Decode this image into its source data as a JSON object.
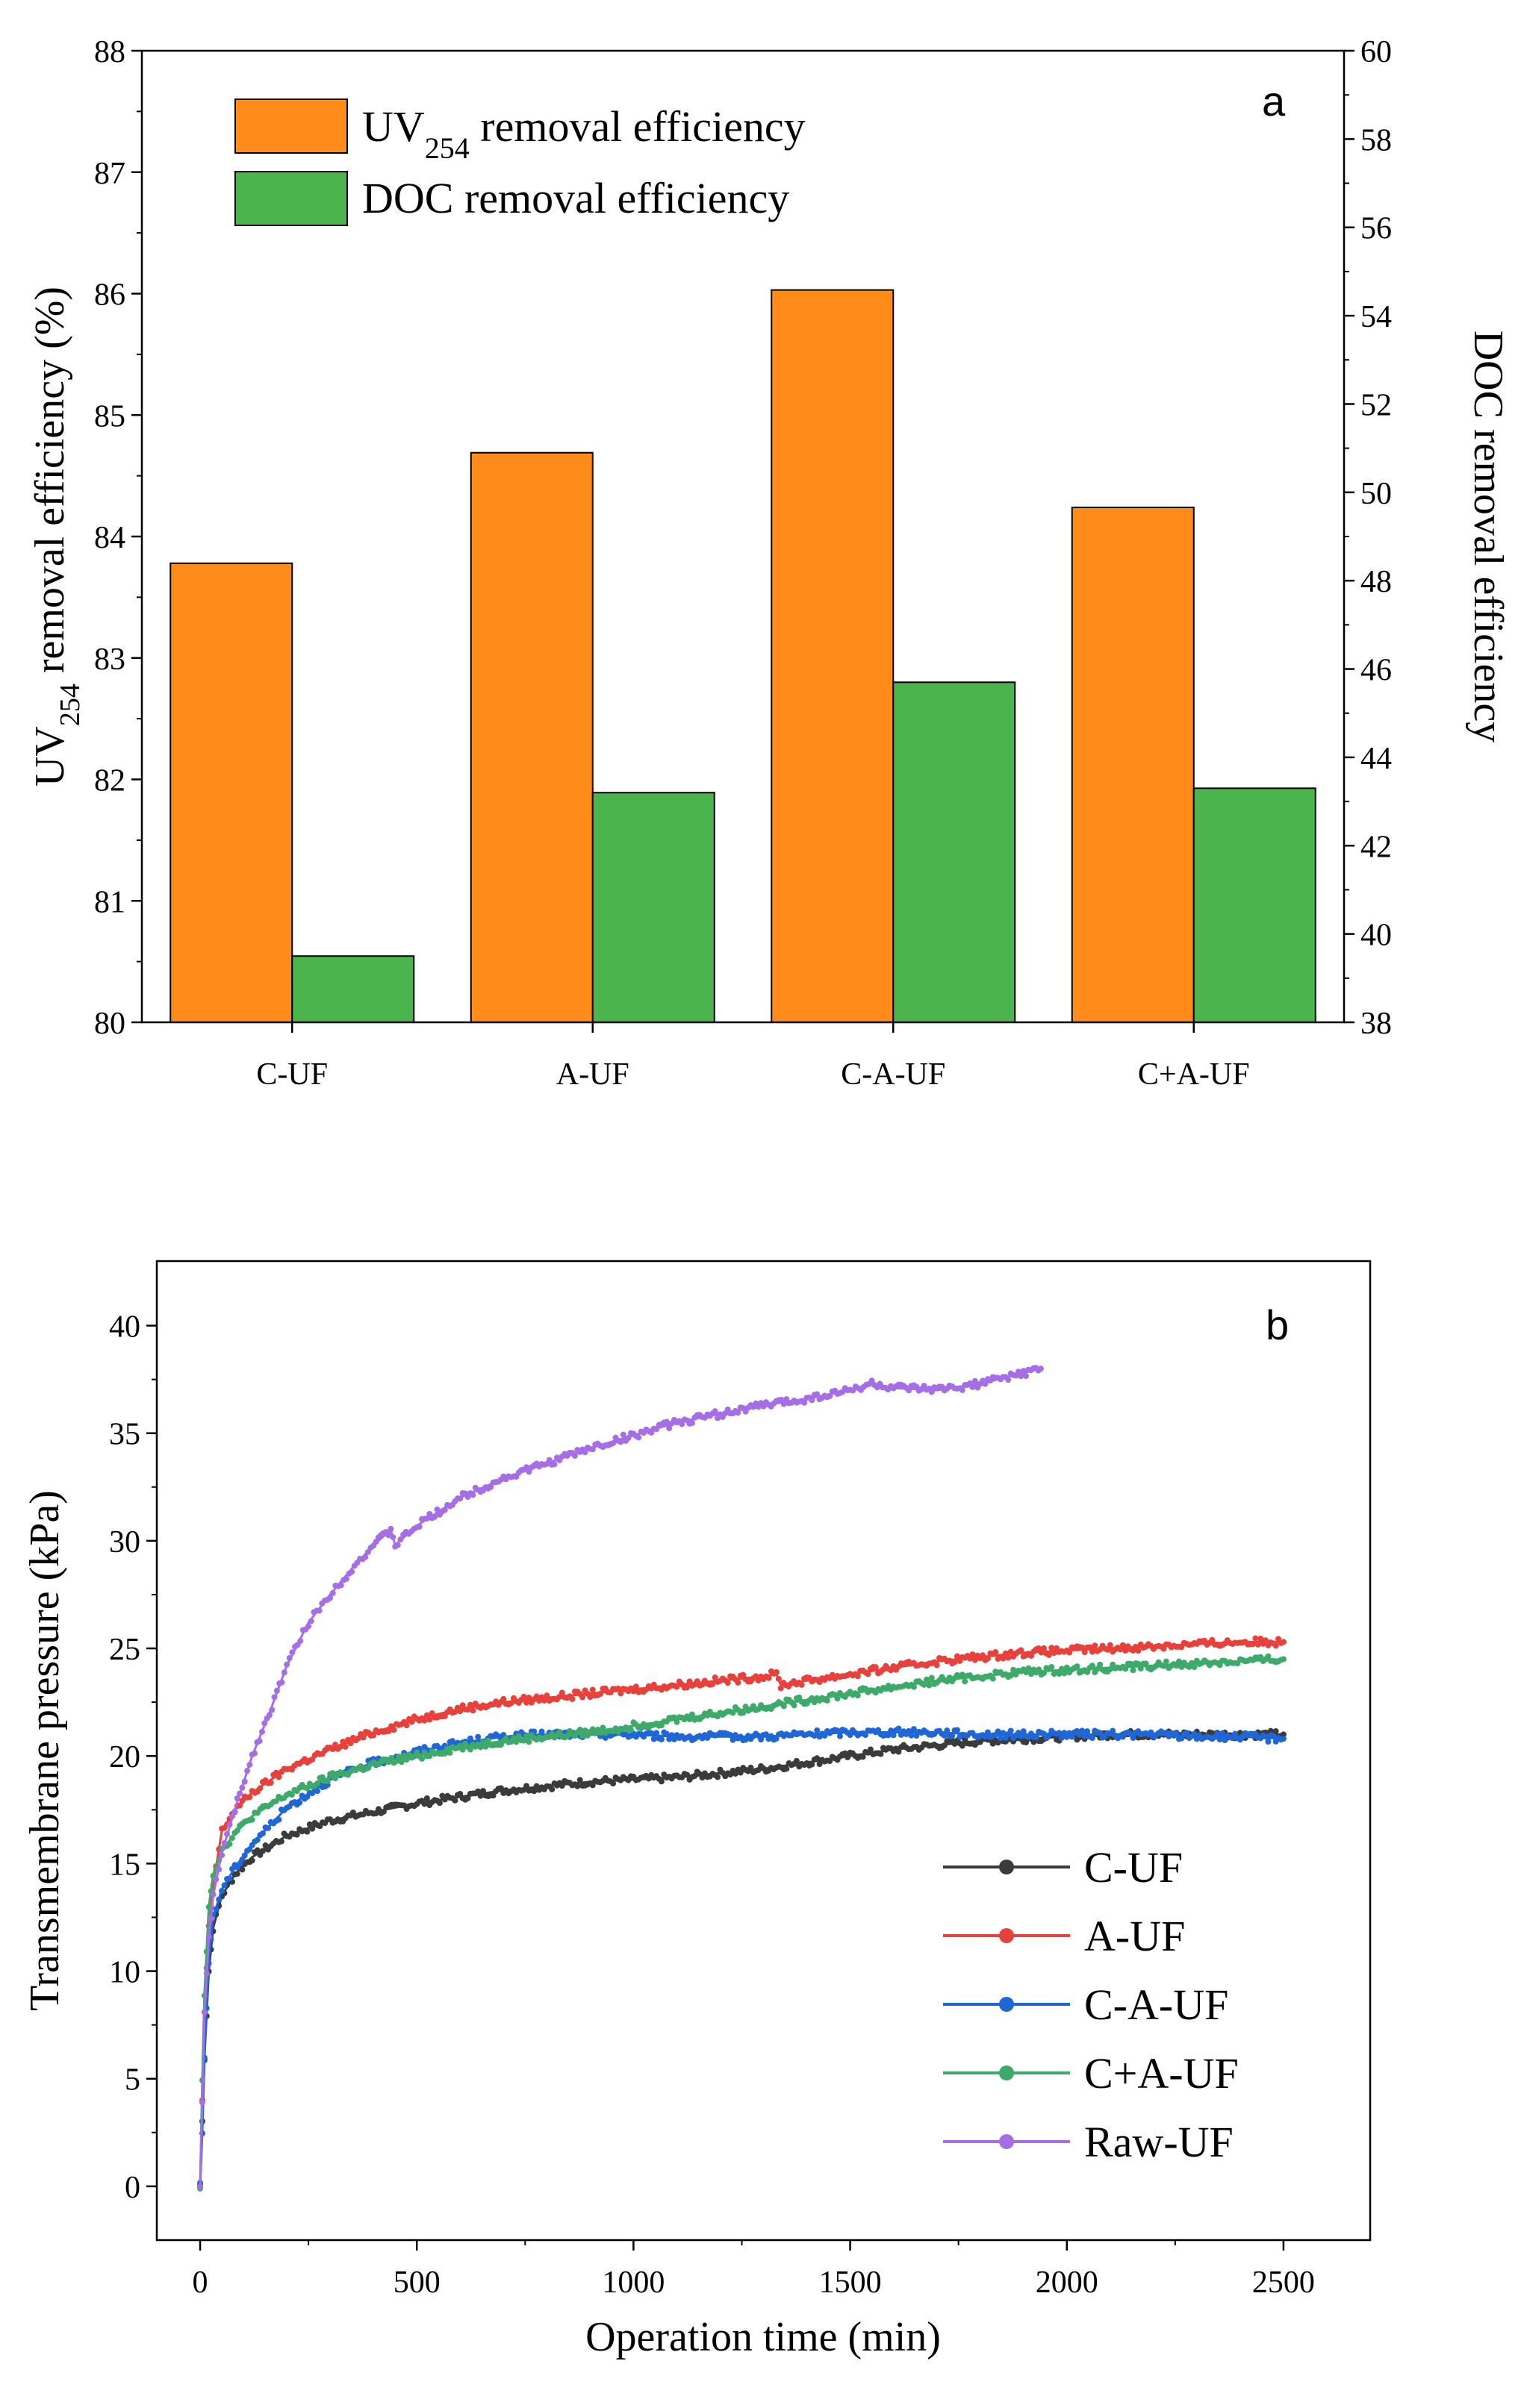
{
  "chart_data": [
    {
      "type": "bar",
      "panel_label": "a",
      "categories": [
        "C-UF",
        "A-UF",
        "C-A-UF",
        "C+A-UF"
      ],
      "series": [
        {
          "name": "UV254 removal efficiency",
          "legend_main": "UV",
          "legend_sub": "254",
          "legend_rest": " removal efficiency",
          "axis": "left",
          "color": "#ff8c1a",
          "values": [
            83.78,
            84.69,
            86.03,
            84.24
          ]
        },
        {
          "name": "DOC removal efficiency",
          "legend_main": "DOC removal efficiency",
          "axis": "right",
          "color": "#4cb44c",
          "values": [
            39.5,
            43.2,
            45.7,
            43.3
          ]
        }
      ],
      "ylabel_left": {
        "main": "UV",
        "sub": "254",
        "rest": " removal efficiency (%)"
      },
      "ylabel_right": "DOC removal efficiency",
      "ylim_left": [
        80,
        88
      ],
      "yticks_left": [
        "80",
        "81",
        "82",
        "83",
        "84",
        "85",
        "86",
        "87",
        "88"
      ],
      "ylim_right": [
        38,
        60
      ],
      "yticks_right": [
        "38",
        "40",
        "42",
        "44",
        "46",
        "48",
        "50",
        "52",
        "54",
        "56",
        "58",
        "60"
      ],
      "legend_position": "top-left"
    },
    {
      "type": "line",
      "panel_label": "b",
      "xlabel": "Operation time (min)",
      "ylabel": "Transmembrane pressure (kPa)",
      "xlim": [
        -100,
        2700
      ],
      "ylim": [
        -2.5,
        43
      ],
      "xticks": [
        "0",
        "500",
        "1000",
        "1500",
        "2000",
        "2500"
      ],
      "yticks": [
        "0",
        "5",
        "10",
        "15",
        "20",
        "25",
        "30",
        "35",
        "40"
      ],
      "legend_position": "bottom-right",
      "series": [
        {
          "name": "C-UF",
          "color": "#3b3b3b",
          "x": [
            0,
            5,
            10,
            20,
            30,
            50,
            80,
            120,
            200,
            300,
            400,
            500,
            600,
            700,
            800,
            900,
            1000,
            1100,
            1200,
            1300,
            1400,
            1500,
            1600,
            1700,
            1800,
            1900,
            2000,
            2100,
            2200,
            2300,
            2400,
            2500
          ],
          "y": [
            0,
            3,
            6,
            10,
            12,
            13.5,
            14.5,
            15.3,
            16.3,
            17,
            17.4,
            17.8,
            18.1,
            18.4,
            18.6,
            18.8,
            18.9,
            19,
            19.2,
            19.4,
            19.7,
            20,
            20.3,
            20.5,
            20.7,
            20.8,
            20.9,
            21,
            21,
            21,
            21,
            21
          ]
        },
        {
          "name": "A-UF",
          "color": "#e8403a",
          "x": [
            0,
            5,
            10,
            20,
            30,
            50,
            80,
            120,
            200,
            300,
            400,
            500,
            600,
            700,
            800,
            900,
            1000,
            1100,
            1200,
            1300,
            1330,
            1340,
            1400,
            1500,
            1600,
            1700,
            1800,
            1900,
            2000,
            2100,
            2200,
            2300,
            2400,
            2500
          ],
          "y": [
            0,
            4,
            8,
            12,
            14,
            16.5,
            17.5,
            18.3,
            19.4,
            20.3,
            21.1,
            21.7,
            22.2,
            22.5,
            22.7,
            22.9,
            23.1,
            23.3,
            23.5,
            23.7,
            23.8,
            23.3,
            23.5,
            23.8,
            24.1,
            24.4,
            24.6,
            24.8,
            24.9,
            25,
            25.1,
            25.2,
            25.3,
            25.3
          ]
        },
        {
          "name": "C-A-UF",
          "color": "#1f66d6",
          "x": [
            0,
            5,
            10,
            20,
            30,
            50,
            80,
            120,
            200,
            300,
            400,
            500,
            600,
            700,
            800,
            900,
            1000,
            1100,
            1200,
            1300,
            1400,
            1500,
            1600,
            1700,
            1800,
            1900,
            2000,
            2100,
            2200,
            2300,
            2400,
            2500
          ],
          "y": [
            0,
            2.5,
            6,
            10.5,
            12.5,
            13.8,
            14.8,
            15.9,
            17.6,
            18.9,
            19.7,
            20.2,
            20.6,
            20.9,
            21,
            21,
            21,
            20.9,
            20.9,
            20.9,
            21,
            21.1,
            21.1,
            21.1,
            21,
            21,
            21,
            21,
            21,
            20.9,
            20.9,
            20.8
          ]
        },
        {
          "name": "C+A-UF",
          "color": "#3daa6a",
          "x": [
            0,
            5,
            10,
            20,
            30,
            50,
            80,
            120,
            200,
            300,
            400,
            500,
            600,
            700,
            800,
            900,
            1000,
            1100,
            1200,
            1300,
            1400,
            1500,
            1600,
            1700,
            1800,
            1900,
            2000,
            2100,
            2200,
            2300,
            2400,
            2500
          ],
          "y": [
            0,
            5,
            9,
            13,
            14.5,
            15.6,
            16.4,
            17.2,
            18.2,
            19,
            19.6,
            20,
            20.4,
            20.7,
            20.9,
            21.1,
            21.4,
            21.7,
            22,
            22.3,
            22.6,
            22.9,
            23.2,
            23.5,
            23.7,
            23.9,
            24,
            24.1,
            24.2,
            24.3,
            24.4,
            24.5
          ]
        },
        {
          "name": "Raw-UF",
          "color": "#a66ee6",
          "x": [
            0,
            5,
            10,
            20,
            30,
            50,
            80,
            120,
            160,
            200,
            250,
            300,
            350,
            400,
            440,
            450,
            500,
            600,
            700,
            800,
            900,
            1000,
            1100,
            1200,
            1300,
            1400,
            1500,
            1550,
            1600,
            1700,
            1800,
            1900,
            1940
          ],
          "y": [
            0,
            4,
            8,
            11.5,
            13.5,
            15.5,
            17.5,
            20,
            22,
            24.2,
            26.2,
            27.5,
            28.7,
            29.8,
            30.5,
            29.8,
            30.7,
            32,
            32.9,
            33.6,
            34.3,
            34.9,
            35.5,
            35.9,
            36.3,
            36.6,
            37,
            37.3,
            37.1,
            37,
            37.3,
            37.8,
            38
          ]
        }
      ]
    }
  ]
}
